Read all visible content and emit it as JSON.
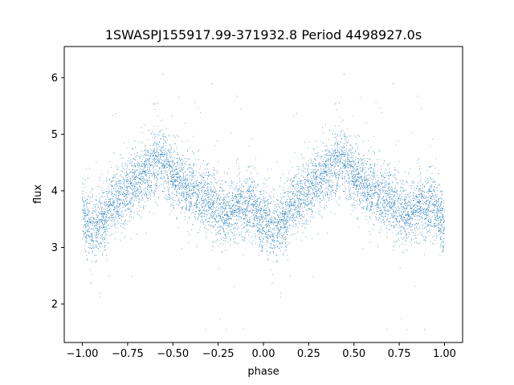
{
  "chart_data": {
    "type": "scatter",
    "title": "1SWASPJ155917.99-371932.8 Period 4498927.0s",
    "xlabel": "phase",
    "ylabel": "flux",
    "xlim": [
      -1.1,
      1.1
    ],
    "ylim": [
      1.32,
      6.55
    ],
    "x_ticks": [
      -1.0,
      -0.75,
      -0.5,
      -0.25,
      0.0,
      0.25,
      0.5,
      0.75,
      1.0
    ],
    "x_tick_labels": [
      "−1.00",
      "−0.75",
      "−0.50",
      "−0.25",
      "0.00",
      "0.25",
      "0.50",
      "0.75",
      "1.00"
    ],
    "y_ticks": [
      2,
      3,
      4,
      5,
      6
    ],
    "y_tick_labels": [
      "2",
      "3",
      "4",
      "5",
      "6"
    ],
    "grid": false,
    "marker_color": "#1f77b4",
    "profile": {
      "x": [
        0.0,
        0.03,
        0.05,
        0.08,
        0.12,
        0.16,
        0.2,
        0.25,
        0.3,
        0.35,
        0.4,
        0.44,
        0.47,
        0.5,
        0.55,
        0.6,
        0.65,
        0.7,
        0.75,
        0.8,
        0.85,
        0.9,
        0.95,
        1.0
      ],
      "y": [
        3.7,
        3.4,
        3.3,
        3.35,
        3.5,
        3.8,
        3.9,
        4.0,
        4.15,
        4.3,
        4.5,
        4.55,
        4.4,
        4.3,
        4.1,
        4.0,
        3.9,
        3.8,
        3.7,
        3.6,
        3.7,
        3.75,
        3.7,
        3.3
      ],
      "scatter": 0.28,
      "point_count": 9000
    }
  }
}
